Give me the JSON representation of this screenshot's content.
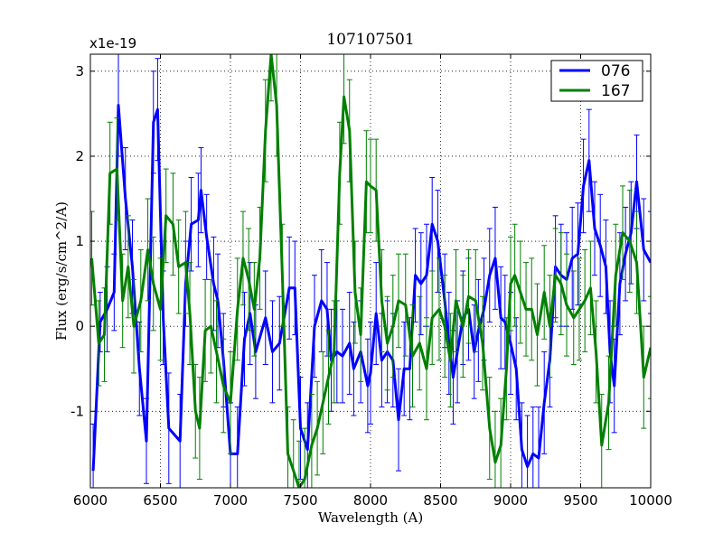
{
  "chart_data": {
    "type": "line",
    "title": "107107501",
    "xlabel": "Wavelength (A)",
    "ylabel": "Flux (erg/s/cm^2/A)",
    "offset_label": "x1e-19",
    "xlim": [
      6000,
      10000
    ],
    "ylim": [
      -1.9,
      3.2
    ],
    "xticks": [
      6000,
      6500,
      7000,
      7500,
      8000,
      8500,
      9000,
      9500,
      10000
    ],
    "yticks": [
      -1,
      0,
      1,
      2,
      3
    ],
    "grid": true,
    "legend_position": "top-right",
    "series": [
      {
        "name": "076",
        "color": "#0000ff",
        "x": [
          6020,
          6070,
          6120,
          6170,
          6200,
          6250,
          6300,
          6350,
          6400,
          6450,
          6480,
          6520,
          6560,
          6640,
          6680,
          6720,
          6770,
          6790,
          6830,
          6880,
          6910,
          6950,
          7000,
          7050,
          7100,
          7140,
          7180,
          7250,
          7300,
          7350,
          7420,
          7460,
          7500,
          7550,
          7600,
          7650,
          7690,
          7720,
          7760,
          7800,
          7850,
          7880,
          7930,
          7980,
          8000,
          8040,
          8080,
          8120,
          8160,
          8200,
          8240,
          8280,
          8320,
          8360,
          8400,
          8440,
          8480,
          8530,
          8560,
          8590,
          8620,
          8660,
          8700,
          8740,
          8770,
          8810,
          8850,
          8890,
          8930,
          8960,
          9000,
          9040,
          9080,
          9120,
          9160,
          9200,
          9240,
          9280,
          9320,
          9360,
          9400,
          9440,
          9480,
          9520,
          9560,
          9600,
          9640,
          9680,
          9710,
          9740,
          9780,
          9820,
          9860,
          9900,
          9950,
          10000
        ],
        "y": [
          -1.7,
          0.05,
          0.2,
          0.4,
          2.6,
          1.5,
          0.7,
          -0.5,
          -1.35,
          2.4,
          2.55,
          0.1,
          -1.2,
          -1.35,
          0.5,
          1.2,
          1.25,
          1.6,
          1.05,
          0.5,
          0.3,
          -0.4,
          -1.5,
          -1.5,
          -0.15,
          0.15,
          -0.3,
          0.1,
          -0.3,
          -0.2,
          0.45,
          0.45,
          -1.2,
          -1.45,
          0.0,
          0.3,
          0.2,
          -0.4,
          -0.3,
          -0.35,
          -0.2,
          -0.5,
          -0.3,
          -0.7,
          -0.55,
          0.15,
          -0.4,
          -0.3,
          -0.4,
          -1.1,
          -0.5,
          -0.5,
          0.6,
          0.5,
          0.6,
          1.2,
          1.0,
          0.3,
          -0.2,
          -0.6,
          -0.3,
          0.1,
          0.2,
          -0.3,
          -0.05,
          0.2,
          0.6,
          0.8,
          0.1,
          0.05,
          -0.2,
          -0.5,
          -1.45,
          -1.65,
          -1.5,
          -1.55,
          -0.9,
          -0.4,
          0.7,
          0.6,
          0.55,
          0.8,
          0.85,
          1.65,
          1.95,
          1.15,
          0.95,
          0.7,
          -0.3,
          -0.7,
          0.5,
          0.85,
          1.1,
          1.7,
          0.9,
          0.75
        ],
        "errors": [
          0.55,
          0.35,
          0.5,
          0.45,
          0.6,
          0.6,
          0.55,
          0.55,
          0.5,
          0.6,
          0.6,
          0.55,
          0.65,
          0.55,
          0.5,
          0.55,
          0.55,
          0.5,
          0.5,
          0.55,
          0.55,
          0.55,
          0.6,
          0.55,
          0.55,
          0.6,
          0.55,
          0.55,
          0.6,
          0.55,
          0.6,
          0.55,
          0.6,
          0.55,
          0.6,
          0.6,
          0.55,
          0.6,
          0.6,
          0.55,
          0.6,
          0.55,
          0.6,
          0.55,
          0.6,
          0.6,
          0.55,
          0.6,
          0.55,
          0.6,
          0.55,
          0.6,
          0.55,
          0.6,
          0.6,
          0.55,
          0.6,
          0.55,
          0.6,
          0.55,
          0.6,
          0.55,
          0.6,
          0.55,
          0.6,
          0.6,
          0.55,
          0.6,
          0.6,
          0.55,
          0.6,
          0.6,
          0.55,
          0.6,
          0.55,
          0.6,
          0.6,
          0.55,
          0.6,
          0.6,
          0.55,
          0.6,
          0.6,
          0.55,
          0.6,
          0.55,
          0.6,
          0.55,
          0.6,
          0.55,
          0.6,
          0.55,
          0.6,
          0.55,
          0.6,
          0.6
        ]
      },
      {
        "name": "167",
        "color": "#008000",
        "x": [
          6010,
          6060,
          6100,
          6140,
          6190,
          6230,
          6270,
          6310,
          6360,
          6410,
          6450,
          6500,
          6540,
          6590,
          6630,
          6680,
          6710,
          6750,
          6780,
          6820,
          6860,
          6900,
          6950,
          7000,
          7050,
          7090,
          7130,
          7170,
          7210,
          7250,
          7290,
          7330,
          7370,
          7410,
          7450,
          7490,
          7530,
          7580,
          7620,
          7660,
          7700,
          7740,
          7780,
          7810,
          7850,
          7890,
          7930,
          7970,
          8000,
          8040,
          8080,
          8120,
          8160,
          8200,
          8250,
          8300,
          8350,
          8400,
          8440,
          8490,
          8530,
          8570,
          8610,
          8660,
          8700,
          8750,
          8800,
          8850,
          8890,
          8930,
          8970,
          9000,
          9030,
          9070,
          9110,
          9150,
          9190,
          9240,
          9280,
          9320,
          9360,
          9400,
          9450,
          9490,
          9530,
          9570,
          9610,
          9650,
          9700,
          9750,
          9800,
          9850,
          9900,
          9950,
          10000
        ],
        "y": [
          0.8,
          -0.2,
          -0.1,
          1.8,
          1.85,
          0.3,
          0.7,
          0.0,
          0.3,
          0.9,
          0.5,
          0.2,
          1.3,
          1.2,
          0.7,
          0.75,
          0.15,
          -1.0,
          -1.2,
          -0.05,
          0.0,
          -0.3,
          -0.7,
          -0.9,
          0.2,
          0.8,
          0.55,
          0.2,
          0.8,
          2.3,
          3.2,
          2.6,
          0.6,
          -1.5,
          -1.7,
          -1.9,
          -1.8,
          -1.4,
          -1.2,
          -0.9,
          -0.6,
          -0.3,
          1.8,
          2.7,
          2.3,
          0.4,
          -0.1,
          1.7,
          1.65,
          1.6,
          0.3,
          -0.2,
          0.0,
          0.3,
          0.25,
          -0.35,
          -0.2,
          -0.5,
          0.1,
          0.2,
          0.0,
          -0.4,
          0.3,
          0.0,
          0.35,
          0.3,
          -0.2,
          -1.2,
          -1.6,
          -1.4,
          -0.5,
          0.5,
          0.6,
          0.4,
          0.2,
          0.2,
          -0.1,
          0.4,
          0.0,
          0.6,
          0.5,
          0.25,
          0.1,
          0.2,
          0.3,
          0.45,
          -0.3,
          -1.4,
          -0.9,
          0.6,
          1.1,
          1.0,
          0.75,
          -0.6,
          -0.25
        ],
        "errors": [
          0.55,
          0.5,
          0.55,
          0.6,
          0.6,
          0.55,
          0.6,
          0.55,
          0.6,
          0.6,
          0.55,
          0.6,
          0.55,
          0.6,
          0.55,
          0.6,
          0.6,
          0.55,
          0.6,
          0.6,
          0.55,
          0.6,
          0.55,
          0.6,
          0.6,
          0.55,
          0.6,
          0.55,
          0.6,
          0.6,
          0.55,
          0.6,
          0.6,
          0.55,
          0.6,
          0.55,
          0.6,
          0.6,
          0.55,
          0.6,
          0.55,
          0.6,
          0.6,
          0.55,
          0.6,
          0.6,
          0.55,
          0.6,
          0.55,
          0.6,
          0.6,
          0.55,
          0.6,
          0.55,
          0.6,
          0.6,
          0.55,
          0.6,
          0.55,
          0.6,
          0.6,
          0.55,
          0.6,
          0.6,
          0.55,
          0.6,
          0.55,
          0.6,
          0.6,
          0.55,
          0.6,
          0.55,
          0.6,
          0.6,
          0.55,
          0.6,
          0.6,
          0.55,
          0.6,
          0.55,
          0.6,
          0.6,
          0.55,
          0.6,
          0.6,
          0.55,
          0.6,
          0.6,
          0.55,
          0.6,
          0.55,
          0.6,
          0.6,
          0.6,
          0.6
        ]
      }
    ]
  }
}
